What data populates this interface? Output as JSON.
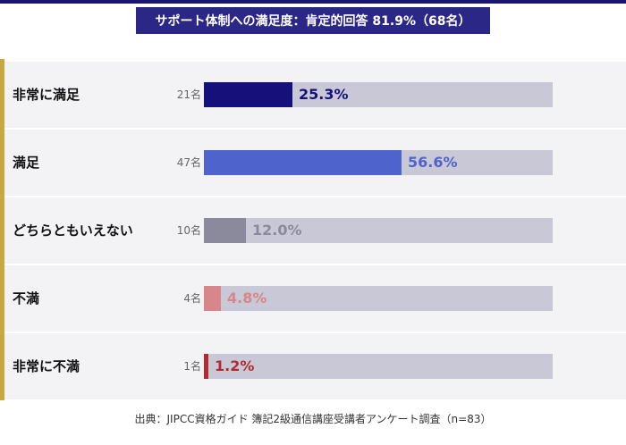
{
  "chart_data": {
    "type": "bar",
    "title": "サポート体制への満足度：肯定的回答 81.9%（68名）",
    "categories": [
      "非常に満足",
      "満足",
      "どちらともいえない",
      "不満",
      "非常に不満"
    ],
    "counts": [
      "21名",
      "47名",
      "10名",
      "4名",
      "1名"
    ],
    "values": [
      25.3,
      56.6,
      12.0,
      4.8,
      1.2
    ],
    "value_labels": [
      "25.3%",
      "56.6%",
      "12.0%",
      "4.8%",
      "1.2%"
    ],
    "xlim": [
      0,
      100
    ],
    "grid": false,
    "legend": "none",
    "colors": [
      "#16117a",
      "#4f63cc",
      "#8a8a9c",
      "#d8868a",
      "#b22a33"
    ],
    "label_colors": [
      "#16117a",
      "#4f63cc",
      "#8a8a9c",
      "#d8868a",
      "#b22a33"
    ],
    "track_color": "#c9c8d6"
  },
  "source": "出典：JIPCC資格ガイド 簿記2級通信講座受講者アンケート調査（n=83）"
}
